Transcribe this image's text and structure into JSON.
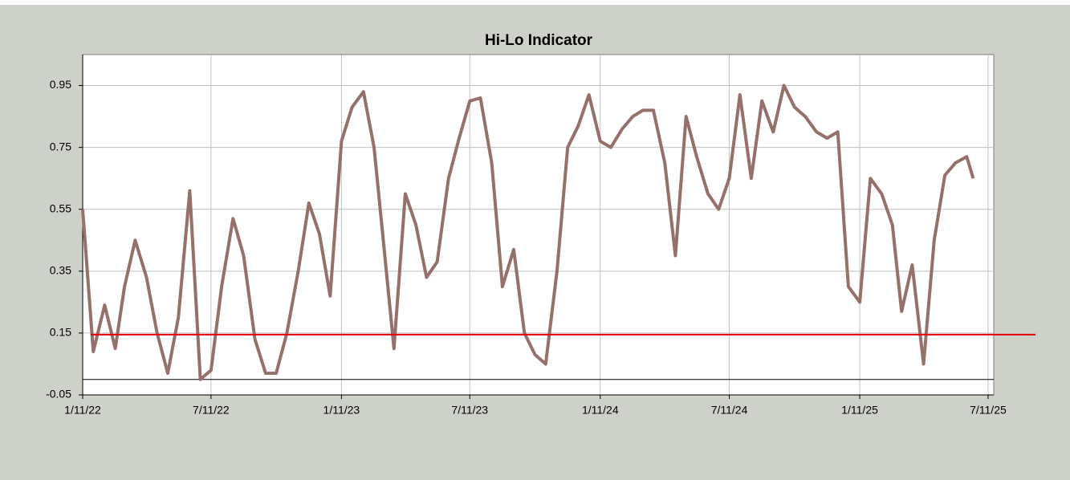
{
  "chart_data": {
    "type": "line",
    "title": "Hi-Lo Indicator",
    "x": [
      "2022-01-11",
      "2022-01-26",
      "2022-02-11",
      "2022-02-26",
      "2022-03-11",
      "2022-03-26",
      "2022-04-11",
      "2022-04-26",
      "2022-05-11",
      "2022-05-26",
      "2022-06-11",
      "2022-06-26",
      "2022-07-11",
      "2022-07-26",
      "2022-08-11",
      "2022-08-26",
      "2022-09-11",
      "2022-09-26",
      "2022-10-11",
      "2022-10-26",
      "2022-11-11",
      "2022-11-26",
      "2022-12-11",
      "2022-12-26",
      "2023-01-11",
      "2023-01-26",
      "2023-02-11",
      "2023-02-26",
      "2023-03-11",
      "2023-03-26",
      "2023-04-11",
      "2023-04-26",
      "2023-05-11",
      "2023-05-26",
      "2023-06-11",
      "2023-06-26",
      "2023-07-11",
      "2023-07-26",
      "2023-08-11",
      "2023-08-26",
      "2023-09-11",
      "2023-09-26",
      "2023-10-11",
      "2023-10-26",
      "2023-11-11",
      "2023-11-26",
      "2023-12-11",
      "2023-12-26",
      "2024-01-11",
      "2024-01-26",
      "2024-02-11",
      "2024-02-26",
      "2024-03-11",
      "2024-03-26",
      "2024-04-11",
      "2024-04-26",
      "2024-05-11",
      "2024-05-26",
      "2024-06-11",
      "2024-06-26",
      "2024-07-11",
      "2024-07-26",
      "2024-08-11",
      "2024-08-26",
      "2024-09-11",
      "2024-09-26",
      "2024-10-11",
      "2024-10-26",
      "2024-11-11",
      "2024-11-26",
      "2024-12-11",
      "2024-12-26",
      "2025-01-11",
      "2025-01-26",
      "2025-02-11",
      "2025-02-26",
      "2025-03-11",
      "2025-03-26",
      "2025-04-11",
      "2025-04-26",
      "2025-05-11",
      "2025-05-26",
      "2025-06-11",
      "2025-06-20"
    ],
    "series": [
      {
        "color": "#96706a",
        "values": [
          0.55,
          0.09,
          0.24,
          0.1,
          0.3,
          0.45,
          0.33,
          0.15,
          0.02,
          0.2,
          0.61,
          0.0,
          0.03,
          0.3,
          0.52,
          0.4,
          0.13,
          0.02,
          0.02,
          0.15,
          0.35,
          0.57,
          0.47,
          0.27,
          0.77,
          0.88,
          0.93,
          0.75,
          0.45,
          0.1,
          0.6,
          0.5,
          0.33,
          0.38,
          0.65,
          0.78,
          0.9,
          0.91,
          0.7,
          0.3,
          0.42,
          0.15,
          0.08,
          0.05,
          0.35,
          0.75,
          0.82,
          0.92,
          0.77,
          0.75,
          0.81,
          0.85,
          0.87,
          0.87,
          0.7,
          0.4,
          0.85,
          0.72,
          0.6,
          0.55,
          0.65,
          0.92,
          0.65,
          0.9,
          0.8,
          0.95,
          0.88,
          0.85,
          0.8,
          0.78,
          0.8,
          0.3,
          0.25,
          0.65,
          0.6,
          0.5,
          0.22,
          0.37,
          0.05,
          0.45,
          0.66,
          0.7,
          0.72,
          0.65
        ]
      }
    ],
    "reference_line": {
      "value": 0.145,
      "color": "#e60000"
    },
    "xlim": [
      "2022-01-11",
      "2025-07-19"
    ],
    "xticks": [
      {
        "value": "2022-01-11",
        "label": "1/11/22"
      },
      {
        "value": "2022-07-11",
        "label": "7/11/22"
      },
      {
        "value": "2023-01-11",
        "label": "1/11/23"
      },
      {
        "value": "2023-07-11",
        "label": "7/11/23"
      },
      {
        "value": "2024-01-11",
        "label": "1/11/24"
      },
      {
        "value": "2024-07-11",
        "label": "7/11/24"
      },
      {
        "value": "2025-01-11",
        "label": "1/11/25"
      },
      {
        "value": "2025-07-11",
        "label": "7/11/25"
      }
    ],
    "ylim": [
      -0.05,
      1.05
    ],
    "yticks": [
      -0.05,
      0.15,
      0.35,
      0.55,
      0.75,
      0.95
    ],
    "grid": true
  }
}
